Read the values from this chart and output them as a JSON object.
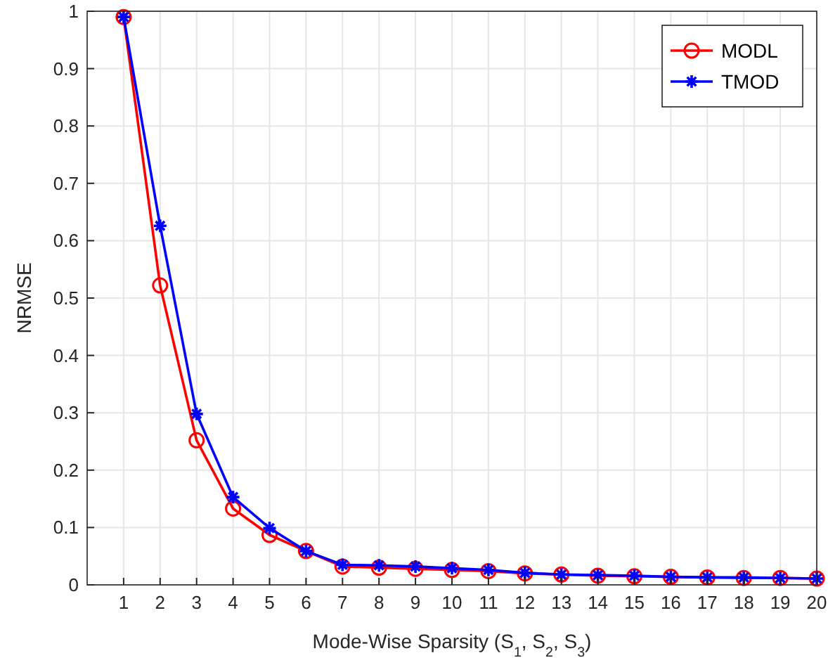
{
  "chart_data": {
    "type": "line",
    "xlabel": "Mode-Wise Sparsity (S$_{1}$, S$_{2}$, S$_{3}$)",
    "ylabel": "NRMSE",
    "x": [
      1,
      2,
      3,
      4,
      5,
      6,
      7,
      8,
      9,
      10,
      11,
      12,
      13,
      14,
      15,
      16,
      17,
      18,
      19,
      20
    ],
    "series": [
      {
        "name": "MODL",
        "color": "#ff0000",
        "marker": "circle",
        "values": [
          0.99,
          0.522,
          0.252,
          0.133,
          0.087,
          0.059,
          0.032,
          0.03,
          0.028,
          0.026,
          0.024,
          0.02,
          0.018,
          0.016,
          0.015,
          0.014,
          0.013,
          0.012,
          0.012,
          0.011
        ]
      },
      {
        "name": "TMOD",
        "color": "#0000ff",
        "marker": "cross",
        "values": [
          0.99,
          0.626,
          0.298,
          0.153,
          0.099,
          0.059,
          0.035,
          0.034,
          0.032,
          0.029,
          0.026,
          0.021,
          0.018,
          0.017,
          0.016,
          0.014,
          0.013,
          0.013,
          0.012,
          0.011
        ]
      }
    ],
    "xlim": [
      0,
      20
    ],
    "xticks": [
      1,
      2,
      3,
      4,
      5,
      6,
      7,
      8,
      9,
      10,
      11,
      12,
      13,
      14,
      15,
      16,
      17,
      18,
      19,
      20
    ],
    "ylim": [
      0,
      1
    ],
    "yticks": [
      0,
      0.1,
      0.2,
      0.3,
      0.4,
      0.5,
      0.6,
      0.7,
      0.8,
      0.9,
      1
    ],
    "grid": true,
    "legend": "top right",
    "line_style": "solid"
  }
}
